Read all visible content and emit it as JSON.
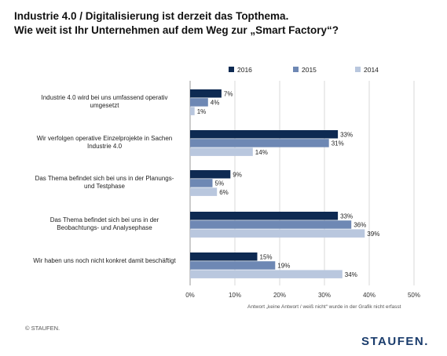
{
  "title": {
    "line1": "Industrie 4.0 / Digitalisierung ist derzeit das Topthema.",
    "line2": "Wie weit ist Ihr Unternehmen auf dem Weg zur „Smart Factory“?"
  },
  "footnote": "Antwort „keine Antwort / weiß nicht“ wurde in der Grafik nicht erfasst",
  "copyright": "© STAUFEN.",
  "logo": "STAUFEN.",
  "chart_data": {
    "type": "bar",
    "orientation": "horizontal",
    "categories": [
      "Industrie 4.0 wird bei uns umfassend operativ umgesetzt",
      "Wir verfolgen operative Einzelprojekte in Sachen Industrie 4.0",
      "Das Thema befindet sich bei uns in der Planungs- und Testphase",
      "Das Thema befindet sich bei uns in der Beobachtungs- und Analysephase",
      "Wir haben uns noch nicht konkret damit beschäftigt"
    ],
    "series": [
      {
        "name": "2016",
        "color": "#0e2a52",
        "values": [
          7,
          33,
          9,
          33,
          15
        ]
      },
      {
        "name": "2015",
        "color": "#6e88b4",
        "values": [
          4,
          31,
          5,
          36,
          19
        ]
      },
      {
        "name": "2014",
        "color": "#b9c7de",
        "values": [
          1,
          14,
          6,
          39,
          34
        ]
      }
    ],
    "value_suffix": "%",
    "xlim": [
      0,
      50
    ],
    "xticks": [
      "0%",
      "10%",
      "20%",
      "30%",
      "40%",
      "50%"
    ],
    "legend_position": "top",
    "grid": true
  }
}
